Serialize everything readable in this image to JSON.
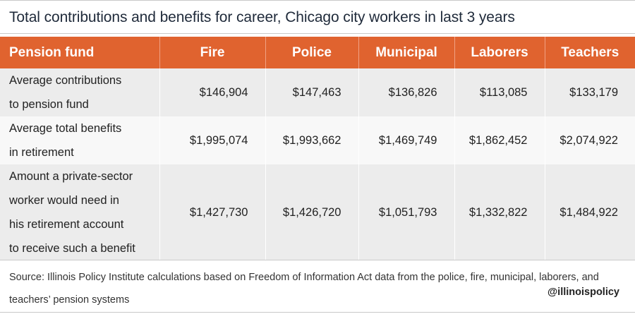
{
  "chart_data": {
    "type": "table",
    "title": "Total contributions and benefits for career, Chicago city workers in last 3 years",
    "columns": [
      "Pension fund",
      "Fire",
      "Police",
      "Municipal",
      "Laborers",
      "Teachers"
    ],
    "rows": [
      {
        "label_lines": [
          "Average contributions",
          "to pension fund"
        ],
        "values": [
          "$146,904",
          "$147,463",
          "$136,826",
          "$113,085",
          "$133,179"
        ]
      },
      {
        "label_lines": [
          "Average total benefits",
          "in retirement"
        ],
        "values": [
          "$1,995,074",
          "$1,993,662",
          "$1,469,749",
          "$1,862,452",
          "$2,074,922"
        ]
      },
      {
        "label_lines": [
          "Amount a private-sector",
          "worker would need in",
          "his retirement account",
          "to receive such a benefit"
        ],
        "values": [
          "$1,427,730",
          "$1,426,720",
          "$1,051,793",
          "$1,332,822",
          "$1,484,922"
        ]
      }
    ],
    "source": "Source: Illinois Policy Institute calculations based on Freedom of Information Act data from the police, fire, municipal, laborers, and teachers’ pension systems",
    "handle": "@illinoispolicy"
  },
  "colors": {
    "header_background": "#e0632f",
    "header_text": "#ffffff",
    "row_shade_dark": "#ececec",
    "row_shade_light": "#f8f8f8"
  }
}
